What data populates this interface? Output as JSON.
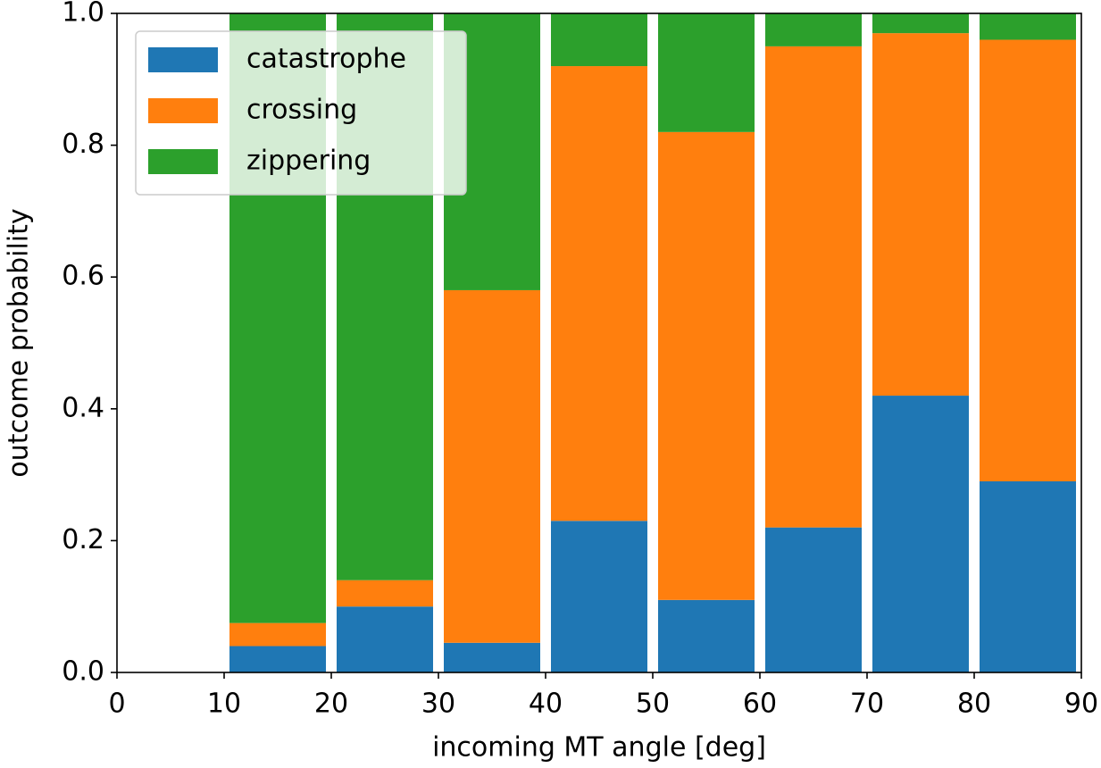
{
  "chart_data": {
    "type": "stacked-bar",
    "x": [
      15,
      25,
      35,
      45,
      55,
      65,
      75,
      85
    ],
    "series": [
      {
        "name": "catastrophe",
        "color": "#1f77b4",
        "values": [
          0.04,
          0.1,
          0.045,
          0.23,
          0.11,
          0.22,
          0.42,
          0.29
        ]
      },
      {
        "name": "crossing",
        "color": "#ff7f0e",
        "values": [
          0.035,
          0.04,
          0.535,
          0.69,
          0.71,
          0.73,
          0.55,
          0.67
        ]
      },
      {
        "name": "zippering",
        "color": "#2ca02c",
        "values": [
          0.925,
          0.86,
          0.42,
          0.08,
          0.18,
          0.05,
          0.03,
          0.04
        ]
      }
    ],
    "xlabel": "incoming MT angle [deg]",
    "ylabel": "outcome probability",
    "xlim": [
      0,
      90
    ],
    "ylim": [
      0,
      1
    ],
    "xticks": [
      0,
      10,
      20,
      30,
      40,
      50,
      60,
      70,
      80,
      90
    ],
    "yticks": [
      {
        "value": 0,
        "label": "0.0"
      },
      0.2,
      0.4,
      0.6,
      0.8,
      {
        "value": 1,
        "label": "1.0"
      }
    ],
    "legend": "upper left"
  }
}
